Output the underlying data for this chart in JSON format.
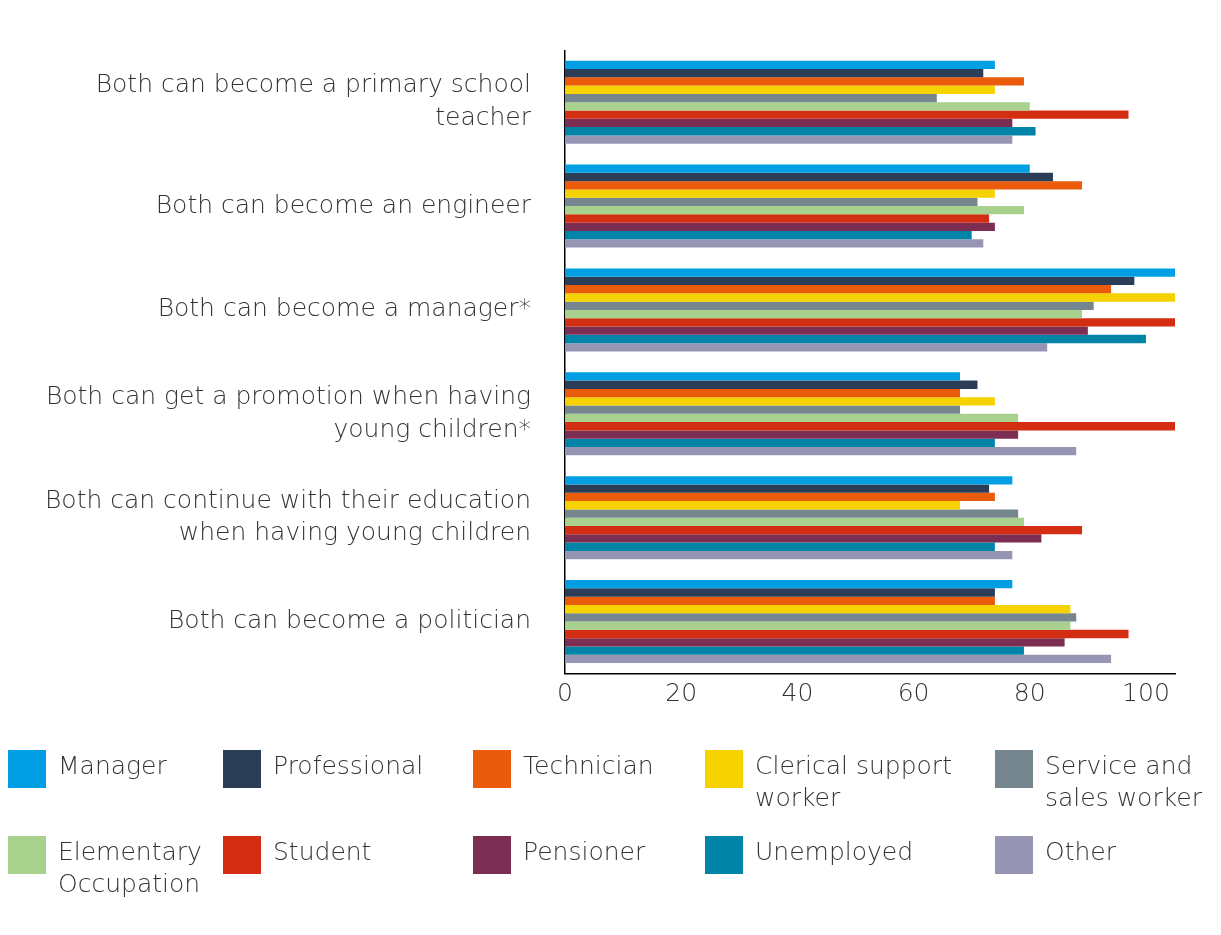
{
  "chart_data": {
    "type": "bar",
    "orientation": "horizontal",
    "categories": [
      "Both can become a primary school teacher",
      "Both can become an engineer",
      "Both can become a manager*",
      "Both can get a promotion when having young children*",
      "Both can continue with their education when having young children",
      "Both can become a politician"
    ],
    "series": [
      {
        "name": "Manager",
        "color": "#009fe3",
        "values": [
          74,
          80,
          105,
          68,
          77,
          77
        ]
      },
      {
        "name": "Professional",
        "color": "#2c3e57",
        "values": [
          72,
          84,
          98,
          71,
          73,
          74
        ]
      },
      {
        "name": "Technician",
        "color": "#ea5b0c",
        "values": [
          79,
          89,
          94,
          68,
          74,
          74
        ]
      },
      {
        "name": "Clerical support worker",
        "color": "#f5d200",
        "values": [
          74,
          74,
          105,
          74,
          68,
          87
        ]
      },
      {
        "name": "Service and sales worker",
        "color": "#76868e",
        "values": [
          64,
          71,
          91,
          68,
          78,
          88
        ]
      },
      {
        "name": "Elementary Occupation",
        "color": "#a9d18e",
        "values": [
          80,
          79,
          89,
          78,
          79,
          87
        ]
      },
      {
        "name": "Student",
        "color": "#d42e12",
        "values": [
          97,
          73,
          105,
          105,
          89,
          97
        ]
      },
      {
        "name": "Pensioner",
        "color": "#7b2d52",
        "values": [
          77,
          74,
          90,
          78,
          82,
          86
        ]
      },
      {
        "name": "Unemployed",
        "color": "#0085a8",
        "values": [
          81,
          70,
          100,
          74,
          74,
          79
        ]
      },
      {
        "name": "Other",
        "color": "#9696b4",
        "values": [
          77,
          72,
          83,
          88,
          77,
          94
        ]
      }
    ],
    "xlim": [
      0,
      105
    ],
    "xticks": [
      0,
      20,
      40,
      60,
      80,
      100
    ],
    "grid": false,
    "legend": "bottom"
  }
}
